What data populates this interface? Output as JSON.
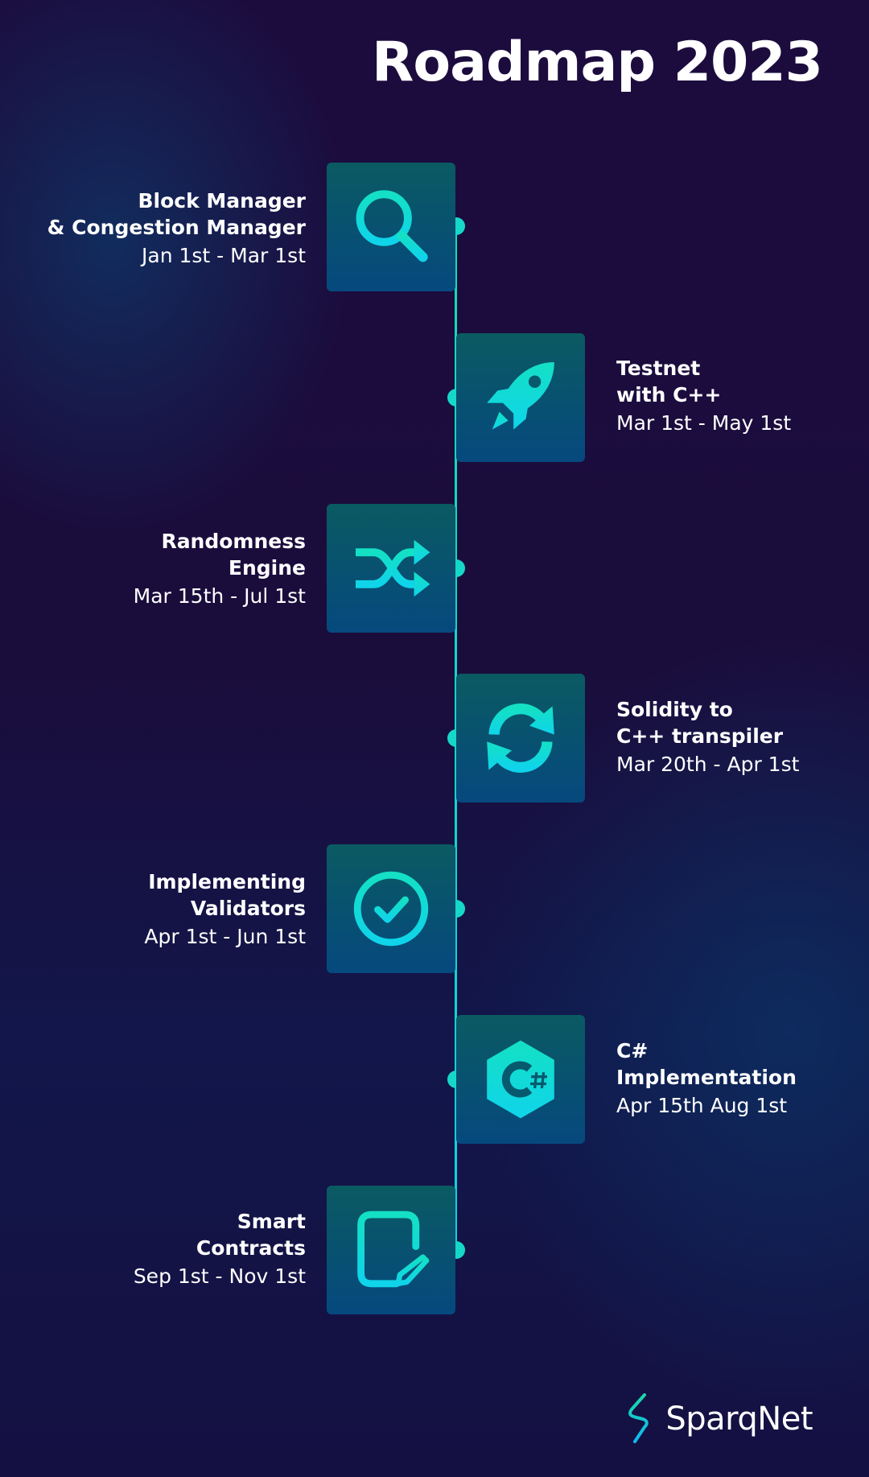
{
  "title": "Roadmap 2023",
  "accent_color": "#16d8c8",
  "milestones": [
    {
      "name": "Block Manager\n& Congestion Manager",
      "dates": "Jan 1st - Mar 1st",
      "icon": "magnifier-icon",
      "side": "left"
    },
    {
      "name": "Testnet\nwith C++",
      "dates": "Mar 1st - May 1st",
      "icon": "rocket-icon",
      "side": "right"
    },
    {
      "name": "Randomness\nEngine",
      "dates": "Mar 15th - Jul 1st",
      "icon": "shuffle-icon",
      "side": "left"
    },
    {
      "name": "Solidity to\nC++ transpiler",
      "dates": "Mar 20th - Apr 1st",
      "icon": "sync-icon",
      "side": "right"
    },
    {
      "name": "Implementing\nValidators",
      "dates": "Apr 1st - Jun 1st",
      "icon": "check-circle-icon",
      "side": "left"
    },
    {
      "name": "C#\nImplementation",
      "dates": "Apr 15th  Aug 1st",
      "icon": "csharp-icon",
      "side": "right"
    },
    {
      "name": "Smart\nContracts",
      "dates": "Sep 1st - Nov 1st",
      "icon": "document-edit-icon",
      "side": "left"
    }
  ],
  "brand": {
    "name": "SparqNet",
    "icon": "lightning-bolt-icon"
  }
}
